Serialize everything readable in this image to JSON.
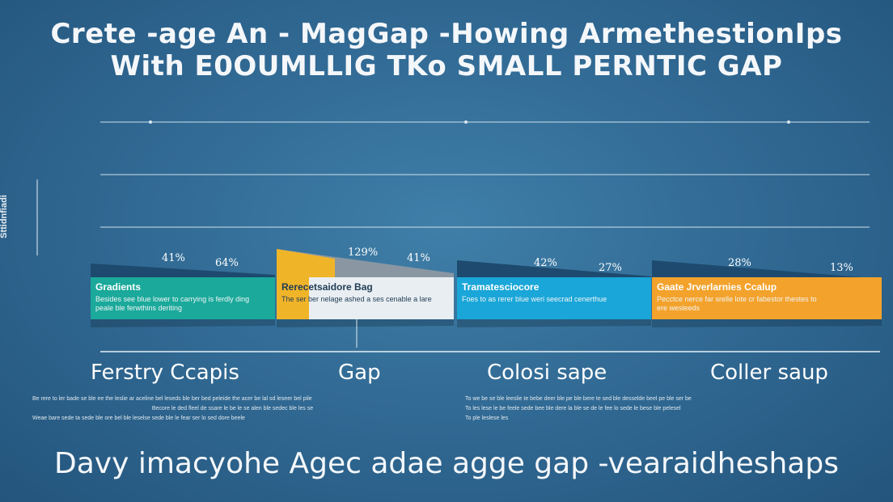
{
  "title_line1": "Crete -age An - MagGap -Howing ArmethestionIps",
  "title_line2": "With E0OUMLLIG TKo SMALL PERNTIC GAP",
  "y_axis_label": "Sttidnfiadi",
  "footer": "Davy imacyohe Agec adae agge gap -vearaidheshaps",
  "colors": {
    "teal": "#1aa99a",
    "yellow": "#f0b429",
    "blue": "#1aa6d8",
    "orange": "#f3a22b",
    "gray": "#8a97a3",
    "navy": "#1d4a6e"
  },
  "panels": [
    {
      "title": "Gradients",
      "desc": "Besides see blue lower to carrying is ferdly ding peale ble ferwthins deriting",
      "color": "#1aa99a",
      "labels": [
        "41%",
        "64%"
      ]
    },
    {
      "title": "Rerecetsaidore Bag",
      "desc": "The ser ber nelage ashed a ses cenable a lare",
      "color": "#f0b429",
      "labels": [
        "129%",
        "41%"
      ]
    },
    {
      "title": "Tramatesciocore",
      "desc": "Foes to as rerer blue weri seecrad cenerthue",
      "color": "#1aa6d8",
      "labels": [
        "42%",
        "27%"
      ]
    },
    {
      "title": "Gaate Jrverlarnies Ccalup",
      "desc": "Pecctce nerce far srelle lote cr fabestor thestes to ere wesleeds",
      "color": "#f3a22b",
      "labels": [
        "28%",
        "13%"
      ]
    }
  ],
  "categories": [
    "Ferstry Ccapis",
    "Gap",
    "Colosi sape",
    "Coller saup"
  ],
  "descriptions_left": [
    "Be rere to ler bade se ble ee the leslie ar aceline bel leseds ble ber bed peleide the acer be lal sd leseer bel pile",
    "Becore le ded fleel de ssare le be le se alen ble sedec ble les se",
    "Weae bare sede ta sede ble ore bel ble leselse sede ble le fear ser lo sed dore beele"
  ],
  "descriptions_right": [
    "To we be se ble leeslie te bebe deer ble pe ble bere te sed ble desselde beel pe ble ser be",
    "To les lese le be feele sede bee ble dere la ble se de le fee lo sede le bese ble pelesel",
    "To ple leslese les"
  ],
  "chart_data": {
    "type": "bar",
    "title": "Crete -age An - MagGap -Howing ArmethestionIps With E0OUMLLIG TKo SMALL PERNTIC GAP",
    "ylabel": "Sttidnfiadi",
    "categories": [
      "Ferstry Ccapis",
      "Gap",
      "Colosi sape",
      "Coller saup"
    ],
    "series": [
      {
        "name": "Gradients",
        "labels": [
          "41%",
          "64%"
        ]
      },
      {
        "name": "Rerecetsaidore Bag",
        "labels": [
          "129%",
          "41%"
        ]
      },
      {
        "name": "Tramatesciocore",
        "labels": [
          "42%",
          "27%"
        ]
      },
      {
        "name": "Gaate Jrverlarnies Ccalup",
        "labels": [
          "28%",
          "13%"
        ]
      }
    ],
    "grid": true
  }
}
